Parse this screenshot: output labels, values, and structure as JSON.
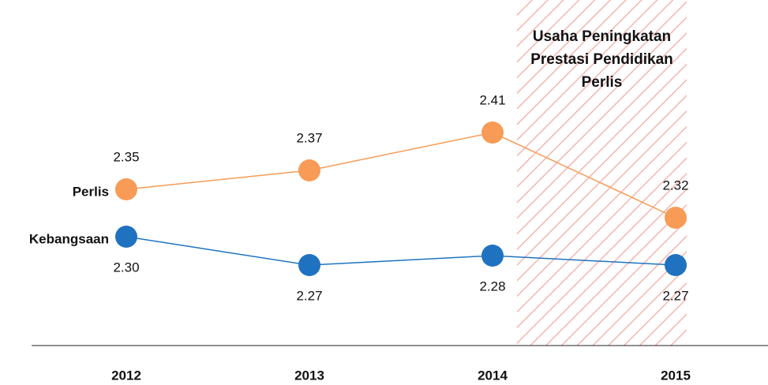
{
  "chart_data": {
    "type": "line",
    "categories": [
      "2012",
      "2013",
      "2014",
      "2015"
    ],
    "series": [
      {
        "name": "Perlis",
        "color": "#f79b56",
        "values": [
          2.35,
          2.37,
          2.41,
          2.32
        ],
        "value_labels": [
          "2.35",
          "2.37",
          "2.41",
          "2.32"
        ],
        "label_position": "above"
      },
      {
        "name": "Kebangsaan",
        "color": "#1f72c0",
        "values": [
          2.3,
          2.27,
          2.28,
          2.27
        ],
        "value_labels": [
          "2.30",
          "2.27",
          "2.28",
          "2.27"
        ],
        "label_position": "below"
      }
    ],
    "ylim": [
      2.2,
      2.45
    ],
    "annotation": "Usaha Peningkatan Prestasi Pendidikan Perlis"
  }
}
